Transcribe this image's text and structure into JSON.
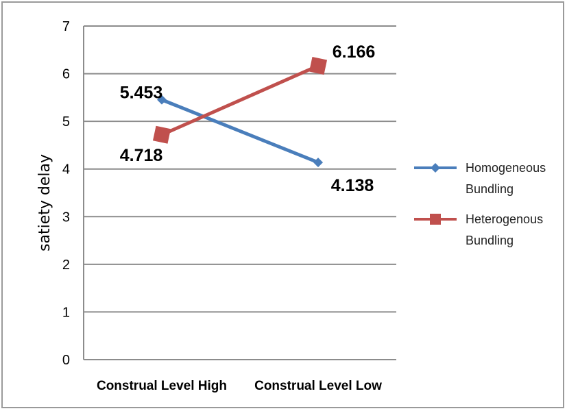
{
  "chart_data": {
    "type": "line",
    "categories": [
      "Construal Level High",
      "Construal Level Low"
    ],
    "ylabel": "satiety delay",
    "ylim": [
      0,
      7
    ],
    "yticks": [
      "0",
      "1",
      "2",
      "3",
      "4",
      "5",
      "6",
      "7"
    ],
    "grid": true,
    "legend_position": "right",
    "series": [
      {
        "name": "Homogeneous Bundling",
        "legend_lines": [
          "Homogeneous",
          "Bundling"
        ],
        "values": [
          5.453,
          4.138
        ],
        "labels": [
          "5.453",
          "4.138"
        ],
        "color": "#4a7ebb",
        "marker": "diamond"
      },
      {
        "name": "Heterogenous Bundling",
        "legend_lines": [
          "Heterogenous",
          "Bundling"
        ],
        "values": [
          4.718,
          6.166
        ],
        "labels": [
          "4.718",
          "6.166"
        ],
        "color": "#c0504d",
        "marker": "square"
      }
    ]
  }
}
